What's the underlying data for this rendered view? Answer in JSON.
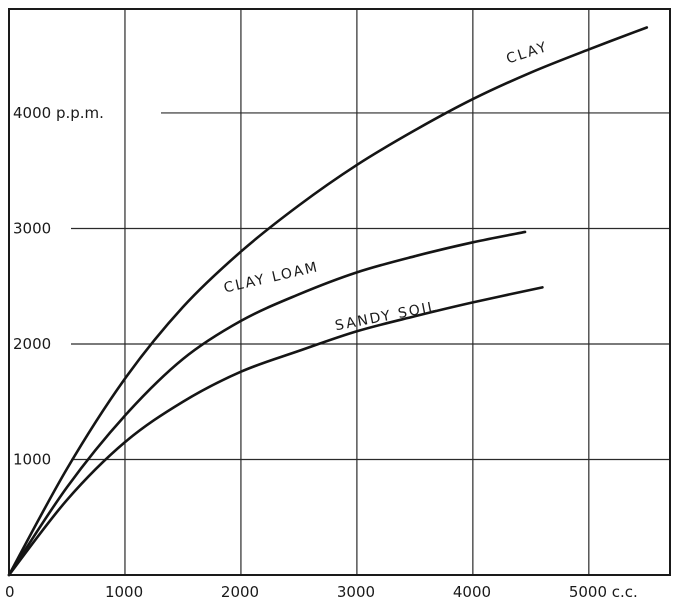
{
  "chart_data": {
    "type": "line",
    "title": "",
    "xlabel": "",
    "ylabel": "",
    "xlim": [
      0,
      5700
    ],
    "ylim": [
      0,
      4900
    ],
    "grid": true,
    "x_ticks": [
      {
        "value": 0,
        "label": "0"
      },
      {
        "value": 1000,
        "label": "1000"
      },
      {
        "value": 2000,
        "label": "2000"
      },
      {
        "value": 3000,
        "label": "3000"
      },
      {
        "value": 4000,
        "label": "4000"
      },
      {
        "value": 5000,
        "label": "5000 c.c."
      }
    ],
    "y_ticks": [
      {
        "value": 1000,
        "label": "1000"
      },
      {
        "value": 2000,
        "label": "2000"
      },
      {
        "value": 3000,
        "label": "3000"
      },
      {
        "value": 4000,
        "label": "4000 p.p.m."
      }
    ],
    "series": [
      {
        "name": "CLAY",
        "x": [
          0,
          500,
          1000,
          1500,
          2000,
          2500,
          3000,
          3500,
          4000,
          4500,
          5000,
          5500
        ],
        "y": [
          0,
          920,
          1700,
          2320,
          2800,
          3200,
          3550,
          3850,
          4120,
          4350,
          4550,
          4740
        ]
      },
      {
        "name": "CLAY LOAM",
        "x": [
          0,
          500,
          1000,
          1500,
          2000,
          2500,
          3000,
          3500,
          4000,
          4450
        ],
        "y": [
          0,
          760,
          1380,
          1870,
          2200,
          2430,
          2620,
          2760,
          2880,
          2970
        ]
      },
      {
        "name": "SANDY SOIL",
        "x": [
          0,
          500,
          1000,
          1500,
          2000,
          2500,
          3000,
          3500,
          4000,
          4600
        ],
        "y": [
          0,
          650,
          1150,
          1500,
          1760,
          1940,
          2110,
          2240,
          2360,
          2490
        ]
      }
    ]
  }
}
